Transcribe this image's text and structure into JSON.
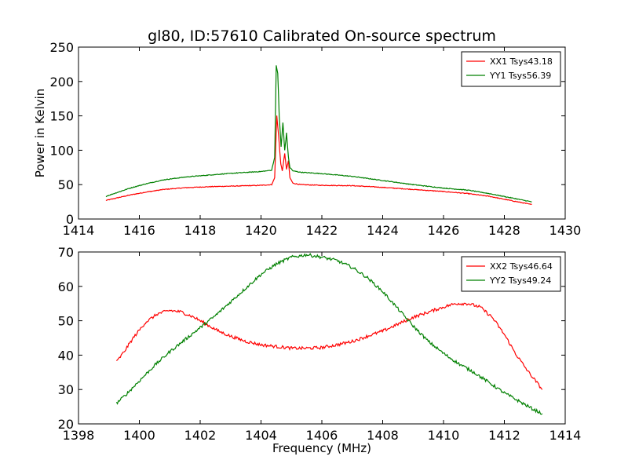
{
  "chart_data": [
    {
      "type": "line",
      "title": "gl80, ID:57610 Calibrated On-source spectrum",
      "xlabel": "",
      "ylabel": "Power in Kelvin",
      "xlim": [
        1414,
        1430
      ],
      "ylim": [
        0,
        250
      ],
      "xticks": [
        "1414",
        "1416",
        "1418",
        "1420",
        "1422",
        "1424",
        "1426",
        "1428",
        "1430"
      ],
      "yticks": [
        "0",
        "50",
        "100",
        "150",
        "200",
        "250"
      ],
      "grid": false,
      "legend_position": "top-right",
      "series": [
        {
          "name": "XX1 Tsys43.18",
          "color": "#ff0000",
          "x": [
            1414.9,
            1415.3,
            1415.7,
            1416.2,
            1416.8,
            1417.5,
            1418.3,
            1419.2,
            1420.0,
            1420.35,
            1420.45,
            1420.52,
            1420.58,
            1420.65,
            1420.7,
            1420.78,
            1420.84,
            1420.9,
            1420.95,
            1421.05,
            1421.3,
            1422.0,
            1423.0,
            1424.0,
            1425.0,
            1426.0,
            1426.8,
            1427.5,
            1428.2,
            1428.9
          ],
          "y": [
            27,
            31,
            35,
            39,
            43,
            45.5,
            47,
            48,
            49,
            50,
            60,
            150,
            120,
            80,
            70,
            95,
            72,
            85,
            60,
            52,
            50,
            49,
            48.5,
            46,
            43,
            40,
            37,
            33,
            27,
            21
          ]
        },
        {
          "name": "YY1 Tsys56.39",
          "color": "#008000",
          "x": [
            1414.9,
            1415.3,
            1415.7,
            1416.2,
            1416.8,
            1417.5,
            1418.3,
            1419.2,
            1420.0,
            1420.35,
            1420.45,
            1420.5,
            1420.55,
            1420.6,
            1420.66,
            1420.72,
            1420.78,
            1420.84,
            1420.9,
            1420.95,
            1421.05,
            1421.3,
            1422.0,
            1423.0,
            1424.0,
            1425.0,
            1426.0,
            1426.8,
            1427.5,
            1428.2,
            1428.9
          ],
          "y": [
            33,
            39,
            45,
            51,
            57,
            61,
            64,
            67,
            69,
            71,
            90,
            223,
            212,
            150,
            105,
            140,
            100,
            125,
            90,
            75,
            70,
            68,
            66,
            62,
            56,
            50,
            45,
            42,
            37,
            31,
            25
          ]
        }
      ]
    },
    {
      "type": "line",
      "title": "",
      "xlabel": "Frequency (MHz)",
      "ylabel": "",
      "xlim": [
        1398,
        1414
      ],
      "ylim": [
        20,
        70
      ],
      "xticks": [
        "1398",
        "1400",
        "1402",
        "1404",
        "1406",
        "1408",
        "1410",
        "1412",
        "1414"
      ],
      "yticks": [
        "20",
        "30",
        "40",
        "50",
        "60",
        "70"
      ],
      "grid": false,
      "legend_position": "top-right",
      "series": [
        {
          "name": "XX2 Tsys46.64",
          "color": "#ff0000",
          "x": [
            1399.25,
            1399.5,
            1399.8,
            1400.2,
            1400.6,
            1401.0,
            1401.4,
            1401.8,
            1402.2,
            1402.6,
            1403.0,
            1403.5,
            1404.0,
            1404.5,
            1405.0,
            1405.5,
            1406.0,
            1406.5,
            1407.0,
            1407.5,
            1408.0,
            1408.5,
            1409.0,
            1409.5,
            1410.0,
            1410.4,
            1410.8,
            1411.2,
            1411.6,
            1412.0,
            1412.4,
            1412.8,
            1413.25
          ],
          "y": [
            38,
            41,
            45,
            49.5,
            52,
            53,
            52.5,
            51,
            49,
            47,
            45.5,
            44,
            43,
            42.5,
            42,
            42,
            42.2,
            43,
            44,
            45.5,
            47,
            49,
            51,
            52.5,
            54,
            55,
            55,
            54,
            51,
            46,
            40,
            35,
            30
          ]
        },
        {
          "name": "YY2 Tsys49.24",
          "color": "#008000",
          "x": [
            1399.25,
            1399.5,
            1400.0,
            1400.5,
            1401.0,
            1401.5,
            1402.0,
            1402.5,
            1403.0,
            1403.5,
            1404.0,
            1404.5,
            1405.0,
            1405.5,
            1406.0,
            1406.5,
            1407.0,
            1407.5,
            1408.0,
            1408.5,
            1409.0,
            1409.5,
            1410.0,
            1410.5,
            1411.0,
            1411.5,
            1412.0,
            1412.5,
            1413.0,
            1413.25
          ],
          "y": [
            26,
            28,
            32.5,
            37,
            41,
            44.5,
            48,
            51.5,
            55.5,
            59.5,
            63.5,
            66.5,
            68.5,
            69.2,
            68.5,
            67.5,
            65.5,
            62.5,
            58.5,
            53.5,
            48.5,
            44,
            40.5,
            37.5,
            35,
            32,
            29,
            26.5,
            24,
            23
          ]
        }
      ]
    }
  ]
}
